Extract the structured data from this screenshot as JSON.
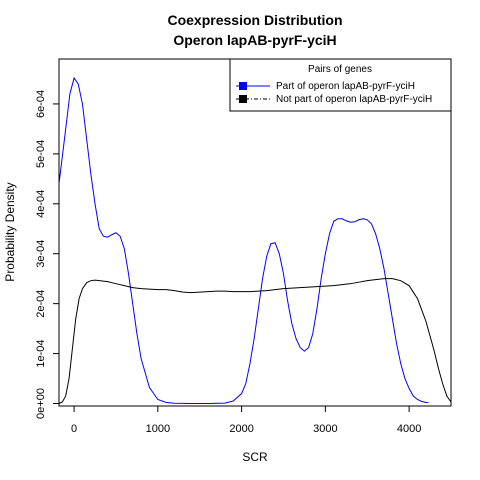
{
  "chart_data": {
    "type": "line",
    "title_line1": "Coexpression Distribution",
    "title_line2": "Operon lapAB-pyrF-yciH",
    "xlabel": "SCR",
    "ylabel": "Probability Density",
    "xlim": [
      -180,
      4500
    ],
    "ylim": [
      -5e-06,
      0.00069
    ],
    "x_ticks": [
      {
        "value": 0,
        "label": "0"
      },
      {
        "value": 1000,
        "label": "1000"
      },
      {
        "value": 2000,
        "label": "2000"
      },
      {
        "value": 3000,
        "label": "3000"
      },
      {
        "value": 4000,
        "label": "4000"
      }
    ],
    "y_ticks": [
      {
        "value": 0,
        "label": "0e+00"
      },
      {
        "value": 0.0001,
        "label": "1e-04"
      },
      {
        "value": 0.0002,
        "label": "2e-04"
      },
      {
        "value": 0.0003,
        "label": "3e-04"
      },
      {
        "value": 0.0004,
        "label": "4e-04"
      },
      {
        "value": 0.0005,
        "label": "5e-04"
      },
      {
        "value": 0.0006,
        "label": "6e-04"
      }
    ],
    "legend": {
      "title": "Pairs of genes",
      "position": "top-right"
    },
    "series": [
      {
        "name": "Part of operon lapAB-pyrF-yciH",
        "color": "#0000ff",
        "x": [
          -180,
          -100,
          -50,
          0,
          50,
          100,
          150,
          200,
          250,
          300,
          350,
          400,
          450,
          500,
          550,
          600,
          650,
          700,
          750,
          800,
          900,
          1000,
          1100,
          1200,
          1400,
          1600,
          1800,
          1900,
          2000,
          2050,
          2100,
          2150,
          2200,
          2250,
          2300,
          2350,
          2400,
          2450,
          2500,
          2550,
          2600,
          2650,
          2700,
          2750,
          2800,
          2850,
          2900,
          2950,
          3000,
          3050,
          3100,
          3150,
          3200,
          3250,
          3300,
          3350,
          3400,
          3450,
          3500,
          3550,
          3600,
          3650,
          3700,
          3750,
          3800,
          3850,
          3900,
          3950,
          4000,
          4050,
          4100,
          4150,
          4200,
          4230
        ],
        "y": [
          0.00044,
          0.00055,
          0.00062,
          0.000652,
          0.00064,
          0.0006,
          0.00053,
          0.00046,
          0.0004,
          0.00035,
          0.000335,
          0.000333,
          0.000338,
          0.000342,
          0.000335,
          0.00031,
          0.00026,
          0.0002,
          0.00014,
          9e-05,
          3.2e-05,
          8e-06,
          2e-06,
          5e-07,
          0.0,
          0.0,
          8e-07,
          5e-06,
          2e-05,
          4e-05,
          8e-05,
          0.00013,
          0.00019,
          0.00025,
          0.000295,
          0.00032,
          0.000322,
          0.0003,
          0.00026,
          0.000205,
          0.00016,
          0.00013,
          0.000112,
          0.000105,
          0.000112,
          0.00014,
          0.00019,
          0.00025,
          0.0003,
          0.00034,
          0.000365,
          0.00037,
          0.00037,
          0.000366,
          0.000363,
          0.000364,
          0.000368,
          0.00037,
          0.000368,
          0.00036,
          0.00034,
          0.00031,
          0.00027,
          0.00022,
          0.00017,
          0.00012,
          8e-05,
          5e-05,
          3e-05,
          1.5e-05,
          8e-06,
          4e-06,
          2e-06,
          2e-06
        ]
      },
      {
        "name": "Not part of operon lapAB-pyrF-yciH",
        "color": "#000000",
        "x": [
          -180,
          -140,
          -100,
          -60,
          -20,
          20,
          60,
          100,
          150,
          200,
          250,
          300,
          400,
          500,
          600,
          700,
          800,
          900,
          1000,
          1100,
          1200,
          1300,
          1400,
          1500,
          1600,
          1700,
          1800,
          1900,
          2000,
          2100,
          2200,
          2300,
          2400,
          2500,
          2600,
          2700,
          2800,
          2900,
          3000,
          3100,
          3200,
          3300,
          3400,
          3500,
          3600,
          3700,
          3800,
          3900,
          4000,
          4100,
          4200,
          4300,
          4350,
          4400,
          4450,
          4500
        ],
        "y": [
          0.0,
          3e-06,
          1.5e-05,
          5e-05,
          0.00011,
          0.00017,
          0.00021,
          0.00023,
          0.000242,
          0.000246,
          0.000247,
          0.000246,
          0.000244,
          0.00024,
          0.000236,
          0.000232,
          0.00023,
          0.000229,
          0.000228,
          0.000228,
          0.000226,
          0.000223,
          0.000222,
          0.000223,
          0.000224,
          0.000225,
          0.000225,
          0.000224,
          0.000224,
          0.000224,
          0.000225,
          0.000226,
          0.000228,
          0.00023,
          0.000231,
          0.000232,
          0.000233,
          0.000234,
          0.000235,
          0.000236,
          0.000238,
          0.00024,
          0.000243,
          0.000246,
          0.000248,
          0.00025,
          0.00025,
          0.000246,
          0.000236,
          0.00021,
          0.000165,
          0.000105,
          7e-05,
          4e-05,
          1.5e-05,
          3e-06
        ]
      }
    ]
  }
}
